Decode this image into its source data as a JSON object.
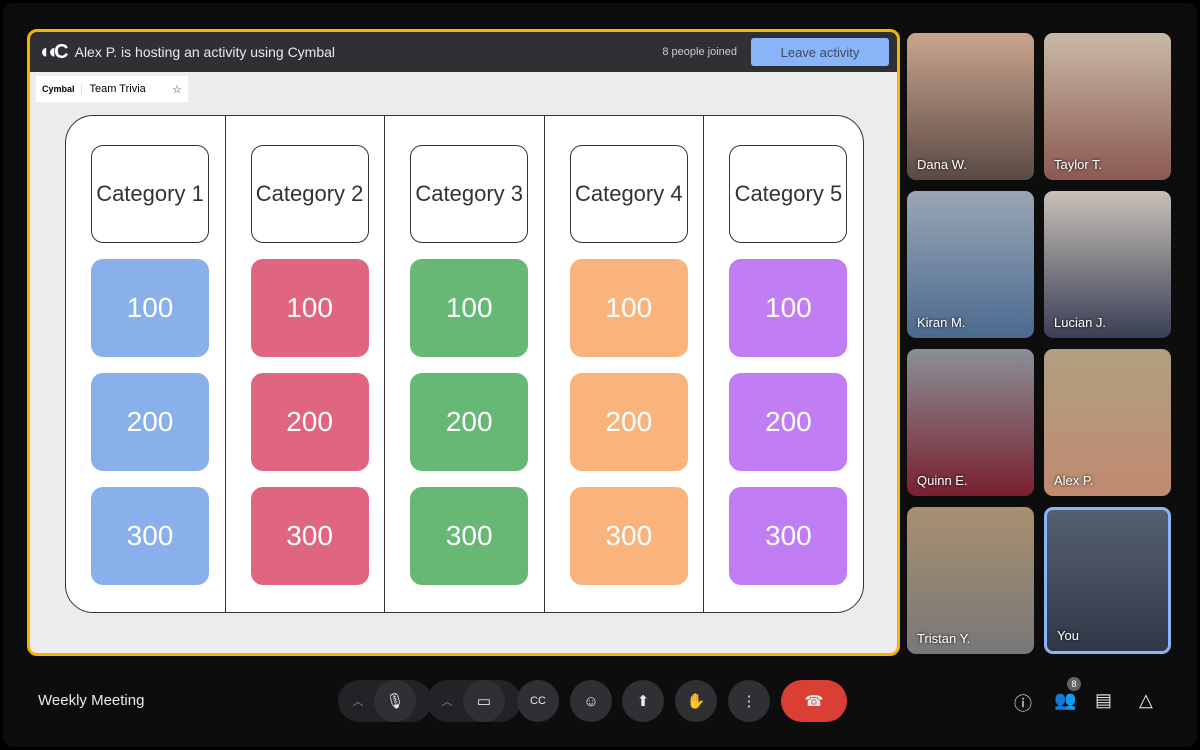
{
  "banner": {
    "logo": "Cymbal",
    "host_text": "Alex P. is hosting an activity using Cymbal",
    "joined": "8 people joined",
    "leave_label": "Leave activity"
  },
  "app_tab": {
    "brand": "Cymbal",
    "title": "Team Trivia"
  },
  "board": {
    "columns": [
      {
        "category": "Category 1",
        "color": "#8ab0ec",
        "values": [
          "100",
          "200",
          "300"
        ]
      },
      {
        "category": "Category 2",
        "color": "#e06680",
        "values": [
          "100",
          "200",
          "300"
        ]
      },
      {
        "category": "Category 3",
        "color": "#66b874",
        "values": [
          "100",
          "200",
          "300"
        ]
      },
      {
        "category": "Category 4",
        "color": "#f8b47c",
        "values": [
          "100",
          "200",
          "300"
        ]
      },
      {
        "category": "Category 5",
        "color": "#c17df4",
        "values": [
          "100",
          "200",
          "300"
        ]
      }
    ]
  },
  "participants": [
    "Dana W.",
    "Taylor T.",
    "Kiran M.",
    "Lucian J.",
    "Quinn E.",
    "Alex P.",
    "Tristan Y.",
    "You"
  ],
  "meeting_title": "Weekly Meeting",
  "people_count": "8",
  "accent": "#f4b400"
}
